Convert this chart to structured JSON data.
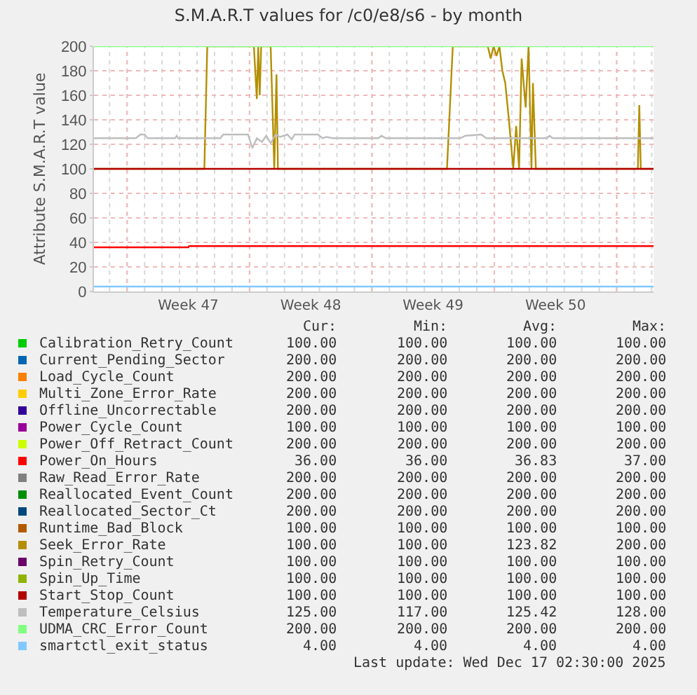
{
  "chart_data": {
    "type": "line",
    "title": "S.M.A.R.T values for /c0/e8/s6 - by month",
    "ylabel": "Attribute S.M.A.R.T value",
    "xlim": [
      "2025-11-15T02:30",
      "2025-12-17T02:30"
    ],
    "xticks": [
      {
        "value": "2025-11-17",
        "label": null
      },
      {
        "value": "2025-11-20T12:00",
        "label": "Week 47"
      },
      {
        "value": "2025-11-24",
        "label": null
      },
      {
        "value": "2025-11-27T12:00",
        "label": "Week 48"
      },
      {
        "value": "2025-12-01",
        "label": null
      },
      {
        "value": "2025-12-04T12:00",
        "label": "Week 49"
      },
      {
        "value": "2025-12-08",
        "label": null
      },
      {
        "value": "2025-12-11T12:00",
        "label": "Week 50"
      },
      {
        "value": "2025-12-15",
        "label": null
      }
    ],
    "ylim": [
      0,
      200
    ],
    "yticks": [
      0,
      20,
      40,
      60,
      80,
      100,
      120,
      140,
      160,
      180,
      200
    ],
    "grid": true,
    "legend": "bottom",
    "series": [
      {
        "name": "Calibration_Retry_Count",
        "color": "#00cc00",
        "values": [
          null,
          null
        ]
      },
      {
        "name": "Current_Pending_Sector",
        "color": "#0066b3",
        "values": [
          null,
          null
        ]
      },
      {
        "name": "Load_Cycle_Count",
        "color": "#ff8000",
        "values": [
          null,
          null
        ]
      },
      {
        "name": "Multi_Zone_Error_Rate",
        "color": "#ffcc00",
        "values": [
          null,
          null
        ]
      },
      {
        "name": "Offline_Uncorrectable",
        "color": "#330099",
        "values": [
          null,
          null
        ]
      },
      {
        "name": "Power_Cycle_Count",
        "color": "#990099",
        "values": [
          null,
          null
        ]
      },
      {
        "name": "Power_Off_Retract_Count",
        "color": "#ccff00",
        "values": [
          null,
          null
        ]
      },
      {
        "name": "Power_On_Hours",
        "color": "#ff0000",
        "x": [
          "2025-11-15T02:30",
          "2025-11-20T12:00",
          "2025-11-20T13:00",
          "2025-12-17T02:30"
        ],
        "values": [
          36,
          36,
          37,
          37
        ]
      },
      {
        "name": "Raw_Read_Error_Rate",
        "color": "#808080",
        "values": [
          null,
          null
        ]
      },
      {
        "name": "Reallocated_Event_Count",
        "color": "#008f00",
        "values": [
          null,
          null
        ]
      },
      {
        "name": "Reallocated_Sector_Ct",
        "color": "#00487d",
        "values": [
          null,
          null
        ]
      },
      {
        "name": "Runtime_Bad_Block",
        "color": "#b35a00",
        "values": [
          null,
          null
        ]
      },
      {
        "name": "Seek_Error_Rate",
        "color": "#b38f00",
        "x": [
          "2025-11-15T02:30",
          "2025-11-21T10:00",
          "2025-11-21T14:00",
          "2025-11-24T06:00",
          "2025-11-24T10:00",
          "2025-11-24T12:00",
          "2025-11-24T14:00",
          "2025-11-24T16:00",
          "2025-11-25T05:00",
          "2025-11-25T10:00",
          "2025-11-25T13:00",
          "2025-11-25T15:00",
          "2025-12-05T07:00",
          "2025-12-05T15:00",
          "2025-12-07T15:00",
          "2025-12-07T19:00",
          "2025-12-07T23:00",
          "2025-12-08T03:00",
          "2025-12-08T07:00",
          "2025-12-08T11:00",
          "2025-12-08T15:00",
          "2025-12-08T20:00",
          "2025-12-09T02:00",
          "2025-12-09T06:00",
          "2025-12-09T10:00",
          "2025-12-09T13:30",
          "2025-12-09T19:00",
          "2025-12-09T23:00",
          "2025-12-10T03:00",
          "2025-12-10T05:00",
          "2025-12-10T09:00",
          "2025-12-16T05:00",
          "2025-12-16T07:00",
          "2025-12-16T09:00",
          "2025-12-17T02:30"
        ],
        "values": [
          100,
          100,
          200,
          200,
          157,
          200,
          160,
          200,
          200,
          100,
          177,
          100,
          100,
          200,
          200,
          190,
          200,
          192,
          200,
          180,
          170,
          140,
          100,
          135,
          100,
          190,
          150,
          200,
          100,
          170,
          100,
          100,
          152,
          100,
          100
        ]
      },
      {
        "name": "Spin_Retry_Count",
        "color": "#6b006b",
        "values": [
          null,
          null
        ]
      },
      {
        "name": "Spin_Up_Time",
        "color": "#8fb300",
        "values": [
          null,
          null
        ]
      },
      {
        "name": "Start_Stop_Count",
        "color": "#b30000",
        "x": [
          "2025-11-15T02:30",
          "2025-12-17T02:30"
        ],
        "values": [
          100,
          100
        ]
      },
      {
        "name": "Temperature_Celsius",
        "color": "#bebebe",
        "x": [
          "2025-11-15T02:30",
          "2025-11-17T12:00",
          "2025-11-17T18:00",
          "2025-11-18T00:00",
          "2025-11-18T04:00",
          "2025-11-19T18:00",
          "2025-11-19T20:00",
          "2025-11-19T22:00",
          "2025-11-22T08:00",
          "2025-11-22T12:00",
          "2025-11-23T22:00",
          "2025-11-24T04:00",
          "2025-11-24T10:00",
          "2025-11-24T17:00",
          "2025-11-24T23:00",
          "2025-11-25T05:00",
          "2025-11-25T12:00",
          "2025-11-25T18:00",
          "2025-11-26T04:00",
          "2025-11-26T10:00",
          "2025-11-26T14:00",
          "2025-11-27T22:00",
          "2025-11-28T04:00",
          "2025-11-28T10:00",
          "2025-11-28T18:00",
          "2025-12-01T09:00",
          "2025-12-01T13:00",
          "2025-12-01T19:00",
          "2025-12-06T01:00",
          "2025-12-06T08:30",
          "2025-12-07T06:00",
          "2025-12-07T13:00",
          "2025-12-11T00:00",
          "2025-12-11T04:00",
          "2025-12-11T08:00",
          "2025-12-17T02:30"
        ],
        "values": [
          125,
          125,
          128,
          128,
          125,
          125,
          127,
          125,
          125,
          128,
          128,
          117,
          125,
          122,
          127,
          121,
          128,
          126,
          128,
          124,
          128,
          128,
          125,
          126,
          125,
          125,
          127,
          125,
          125,
          127,
          128,
          125,
          125,
          127,
          125,
          125
        ]
      },
      {
        "name": "UDMA_CRC_Error_Count",
        "color": "#80ff80",
        "x": [
          "2025-11-15T02:30",
          "2025-12-17T02:30"
        ],
        "values": [
          200,
          200
        ]
      },
      {
        "name": "smartctl_exit_status",
        "color": "#80c9ff",
        "x": [
          "2025-11-15T02:30",
          "2025-12-17T02:30"
        ],
        "values": [
          4,
          4
        ]
      }
    ],
    "annotations": [
      "Cur:",
      "Min:",
      "Avg:",
      "Max:",
      "100.00",
      "100.00",
      "100.00",
      "100.00",
      "200.00",
      "200.00",
      "200.00",
      "200.00",
      "200.00",
      "200.00",
      "200.00",
      "200.00",
      "200.00",
      "200.00",
      "200.00",
      "200.00",
      "200.00",
      "200.00",
      "200.00",
      "200.00",
      "100.00",
      "100.00",
      "100.00",
      "100.00",
      "200.00",
      "200.00",
      "200.00",
      "200.00",
      "36.00",
      "36.00",
      "36.83",
      "37.00",
      "200.00",
      "200.00",
      "200.00",
      "200.00",
      "200.00",
      "200.00",
      "200.00",
      "200.00",
      "200.00",
      "200.00",
      "200.00",
      "200.00",
      "100.00",
      "100.00",
      "100.00",
      "100.00",
      "100.00",
      "100.00",
      "123.82",
      "200.00",
      "100.00",
      "100.00",
      "100.00",
      "100.00",
      "100.00",
      "100.00",
      "100.00",
      "100.00",
      "100.00",
      "100.00",
      "100.00",
      "100.00",
      "125.00",
      "117.00",
      "125.42",
      "128.00",
      "200.00",
      "200.00",
      "200.00",
      "200.00",
      "4.00",
      "4.00",
      "4.00",
      "4.00",
      "Last update: Wed Dec 17 02:30:00 2025"
    ]
  }
}
